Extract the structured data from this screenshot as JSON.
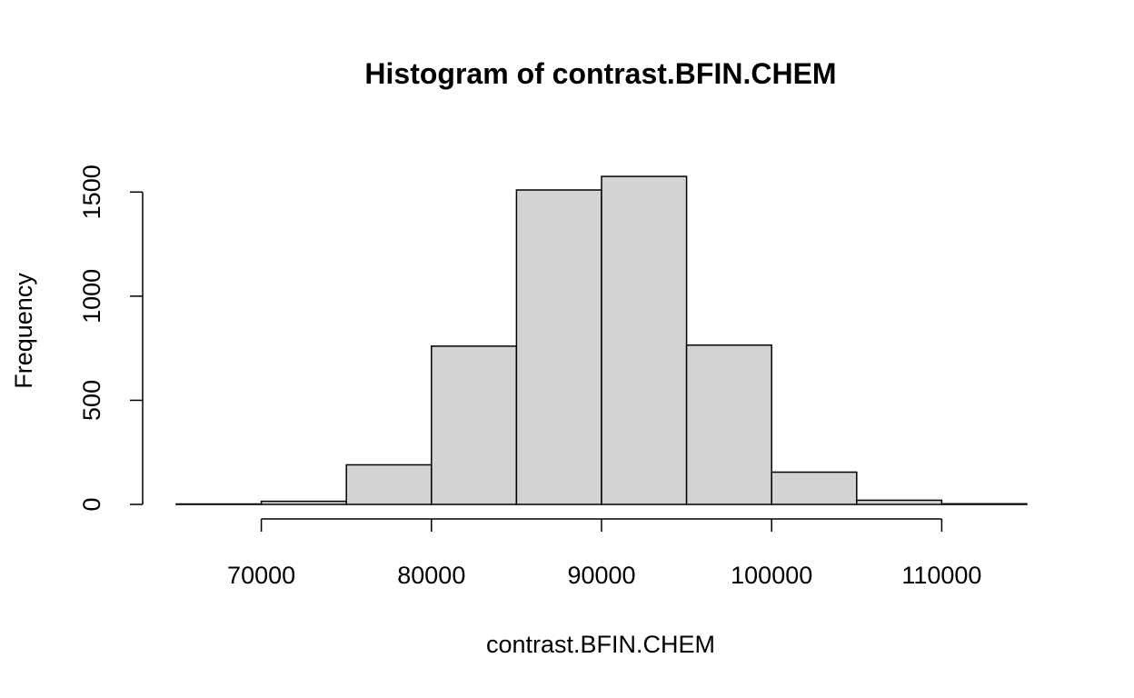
{
  "chart_data": {
    "type": "bar",
    "title": "Histogram of contrast.BFIN.CHEM",
    "xlabel": "contrast.BFIN.CHEM",
    "ylabel": "Frequency",
    "bins": [
      {
        "from": 65000,
        "to": 70000,
        "count": 2
      },
      {
        "from": 70000,
        "to": 75000,
        "count": 15
      },
      {
        "from": 75000,
        "to": 80000,
        "count": 190
      },
      {
        "from": 80000,
        "to": 85000,
        "count": 760
      },
      {
        "from": 85000,
        "to": 90000,
        "count": 1510
      },
      {
        "from": 90000,
        "to": 95000,
        "count": 1575
      },
      {
        "from": 95000,
        "to": 100000,
        "count": 765
      },
      {
        "from": 100000,
        "to": 105000,
        "count": 155
      },
      {
        "from": 105000,
        "to": 110000,
        "count": 20
      },
      {
        "from": 110000,
        "to": 115000,
        "count": 3
      }
    ],
    "xlim": [
      65000,
      115000
    ],
    "ylim": [
      0,
      1600
    ],
    "xticks": [
      70000,
      80000,
      90000,
      100000,
      110000
    ],
    "xtick_labels": [
      "70000",
      "80000",
      "90000",
      "100000",
      "110000"
    ],
    "yticks": [
      0,
      500,
      1000,
      1500
    ],
    "ytick_labels": [
      "0",
      "500",
      "1000",
      "1500"
    ],
    "bar_fill": "#d3d3d3",
    "bar_stroke": "#000000",
    "grid": false,
    "legend": "none"
  }
}
